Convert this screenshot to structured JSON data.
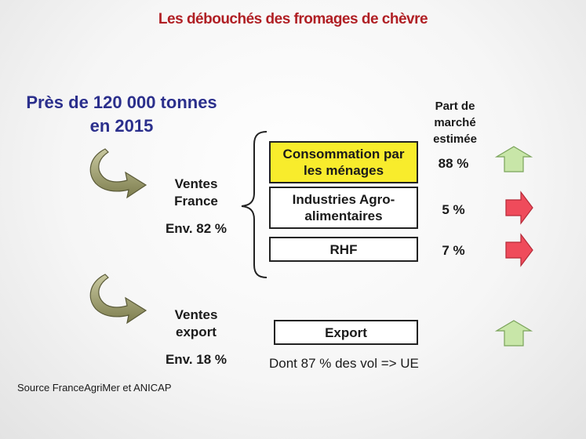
{
  "title": "Les débouchés des fromages de chèvre",
  "headline": {
    "line1": "Près de 120 000 tonnes",
    "line2": "en 2015"
  },
  "market_share_header": {
    "line1": "Part de",
    "line2": "marché",
    "line3": "estimée"
  },
  "ventes_france": {
    "line1": "Ventes",
    "line2": "France",
    "share": "Env. 82 %"
  },
  "ventes_export": {
    "line1": "Ventes",
    "line2": "export",
    "share": "Env. 18 %"
  },
  "channels": [
    {
      "line1": "Consommation par",
      "line2": "les ménages",
      "share": "88 %",
      "trend": "up"
    },
    {
      "line1": "Industries Agro-",
      "line2": "alimentaires",
      "share": "5 %",
      "trend": "right"
    },
    {
      "line1": "RHF",
      "share": "7 %",
      "trend": "right"
    }
  ],
  "export": {
    "label": "Export",
    "note": "Dont 87 % des vol => UE",
    "trend": "up"
  },
  "source": "Source FranceAgriMer et ANICAP",
  "colors": {
    "title": "#b01f24",
    "headline": "#2b2f8c",
    "highlight": "#f8ec2c",
    "arrow_up": "#c8e6a8",
    "arrow_right": "#ef4b5b",
    "curved_arrow": "#9a9a6a"
  }
}
